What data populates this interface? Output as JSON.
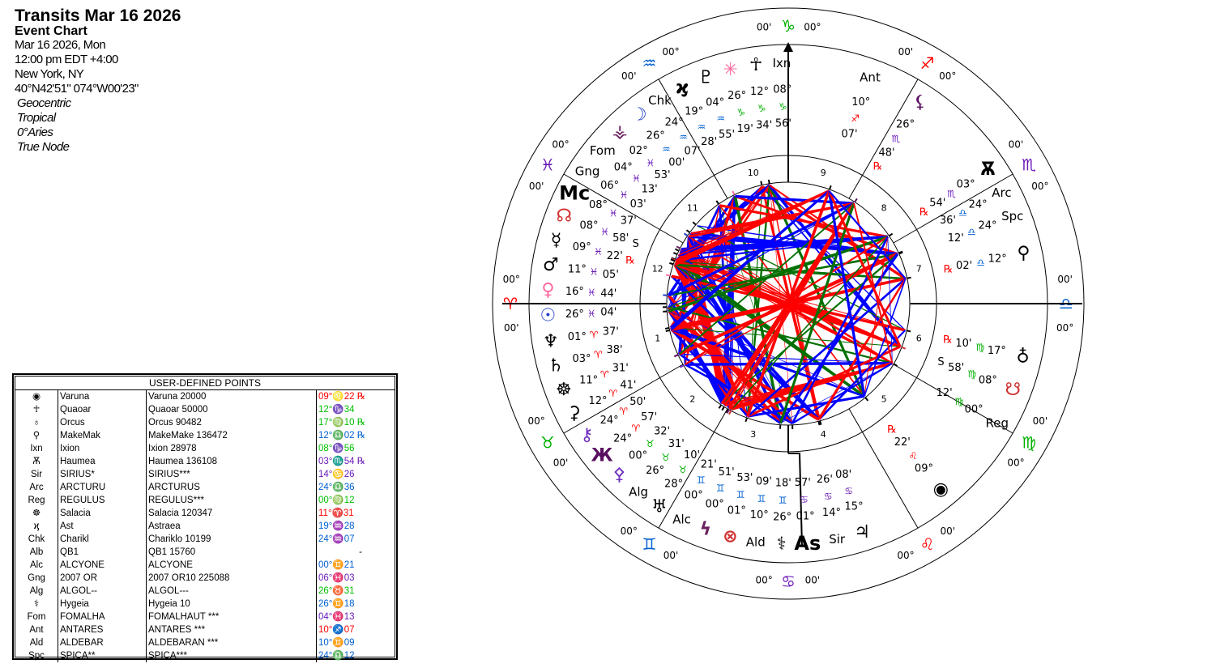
{
  "header": {
    "title": "Transits Mar 16 2026",
    "chart_type": "Event Chart",
    "date": "Mar 16 2026, Mon",
    "time": "12:00 pm  EDT +4:00",
    "place": "New York, NY",
    "coords": "40°N42'51\" 074°W00'23\"",
    "options": [
      "Geocentric",
      "Tropical",
      "0°Aries",
      "True Node"
    ]
  },
  "table": {
    "title": "USER-DEFINED POINTS",
    "rows": [
      {
        "glyph": "◉",
        "short": "Varuna",
        "full": "Varuna 20000",
        "pos": "09°♌22 ℞",
        "color": "#ff0000"
      },
      {
        "glyph": "☥",
        "short": "Quaoar",
        "full": "Quaoar 50000",
        "pos": "12°♑34",
        "color": "#00c000"
      },
      {
        "glyph": "♁",
        "short": "Orcus",
        "full": "Orcus 90482",
        "pos": "17°♍10 ℞",
        "color": "#00c000"
      },
      {
        "glyph": "⚲",
        "short": "MakeMak",
        "full": "MakeMake 136472",
        "pos": "12°♎02 ℞",
        "color": "#0060d0"
      },
      {
        "glyph": "Ixn",
        "short": "Ixion",
        "full": "Ixion 28978",
        "pos": "08°♑56",
        "color": "#00c000"
      },
      {
        "glyph": "Ѫ",
        "short": "Haumea",
        "full": "Haumea 136108",
        "pos": "03°♏54 ℞",
        "color": "#6a1ab8"
      },
      {
        "glyph": "Sir",
        "short": "SIRIUS*",
        "full": "SIRIUS***",
        "pos": "14°♋26",
        "color": "#6a1ab8"
      },
      {
        "glyph": "Arc",
        "short": "ARCTURU",
        "full": "ARCTURUS",
        "pos": "24°♎36",
        "color": "#0060d0"
      },
      {
        "glyph": "Reg",
        "short": "REGULUS",
        "full": "REGULUS***",
        "pos": "00°♍12",
        "color": "#00c000"
      },
      {
        "glyph": "☸",
        "short": "Salacia",
        "full": "Salacia 120347",
        "pos": "11°♈31",
        "color": "#ff0000"
      },
      {
        "glyph": "ϗ",
        "short": "Ast",
        "full": "Astraea",
        "pos": "19°♒28",
        "color": "#0060d0"
      },
      {
        "glyph": "Chk",
        "short": "Charikl",
        "full": "Chariklo 10199",
        "pos": "24°♒07",
        "color": "#0060d0"
      },
      {
        "glyph": "Alb",
        "short": "QB1",
        "full": "QB1 15760",
        "pos": "-",
        "color": "#000000"
      },
      {
        "glyph": "Alc",
        "short": "ALCYONE",
        "full": "ALCYONE",
        "pos": "00°♊21",
        "color": "#0060d0"
      },
      {
        "glyph": "Gng",
        "short": "2007 OR",
        "full": "2007 OR10 225088",
        "pos": "06°♓03",
        "color": "#6a1ab8"
      },
      {
        "glyph": "Alg",
        "short": "ALGOL--",
        "full": "ALGOL---",
        "pos": "26°♉31",
        "color": "#00c000"
      },
      {
        "glyph": "⚕",
        "short": "Hygeia",
        "full": "Hygeia 10",
        "pos": "26°♊18",
        "color": "#0060d0"
      },
      {
        "glyph": "Fom",
        "short": "FOMALHA",
        "full": "FOMALHAUT ***",
        "pos": "04°♓13",
        "color": "#6a1ab8"
      },
      {
        "glyph": "Ant",
        "short": "ANTARES",
        "full": "ANTARES ***",
        "pos": "10°♐07",
        "color": "#ff0000"
      },
      {
        "glyph": "Ald",
        "short": "ALDEBAR",
        "full": "ALDEBARAN ***",
        "pos": "10°♊09",
        "color": "#0060d0"
      },
      {
        "glyph": "Spc",
        "short": "SPICA**",
        "full": "SPICA***",
        "pos": "24°♎12",
        "color": "#0060d0"
      }
    ]
  },
  "wheel": {
    "element_colors": {
      "fire": "#ff0000",
      "earth": "#00b000",
      "air": "#0060d0",
      "water": "#6a1ab8"
    },
    "aspect_colors": {
      "hard": "#ff0000",
      "soft": "#0000ff",
      "minor": "#007000"
    },
    "signs": [
      {
        "glyph": "♈",
        "name": "aries",
        "element": "fire"
      },
      {
        "glyph": "♉",
        "name": "taurus",
        "element": "earth"
      },
      {
        "glyph": "♊",
        "name": "gemini",
        "element": "air"
      },
      {
        "glyph": "♋",
        "name": "cancer",
        "element": "water"
      },
      {
        "glyph": "♌",
        "name": "leo",
        "element": "fire"
      },
      {
        "glyph": "♍",
        "name": "virgo",
        "element": "earth"
      },
      {
        "glyph": "♎",
        "name": "libra",
        "element": "air"
      },
      {
        "glyph": "♏",
        "name": "scorpio",
        "element": "water"
      },
      {
        "glyph": "♐",
        "name": "sagittarius",
        "element": "fire"
      },
      {
        "glyph": "♑",
        "name": "capricorn",
        "element": "earth"
      },
      {
        "glyph": "♒",
        "name": "aquarius",
        "element": "air"
      },
      {
        "glyph": "♓",
        "name": "pisces",
        "element": "water"
      }
    ],
    "cusp_deg": "00°",
    "cusp_min": "00'",
    "houses": [
      "1",
      "2",
      "3",
      "4",
      "5",
      "6",
      "7",
      "8",
      "9",
      "10",
      "11",
      "12"
    ],
    "points": [
      {
        "name": "quaoar",
        "glyph": "☥",
        "color": "#000000",
        "deg": "12°",
        "sign": "♑",
        "min": "34'"
      },
      {
        "name": "ixion",
        "glyph": "Ixn",
        "color": "#000000",
        "deg": "08°",
        "sign": "♑",
        "min": "56'"
      },
      {
        "name": "juno",
        "glyph": "✳",
        "color": "#ff6aa0",
        "deg": "26°",
        "sign": "♑",
        "min": "19'"
      },
      {
        "name": "pluto",
        "glyph": "♇",
        "color": "#000000",
        "deg": "04°",
        "sign": "♒",
        "min": "55'"
      },
      {
        "name": "astraea",
        "glyph": "ϗ",
        "color": "#000000",
        "deg": "19°",
        "sign": "♒",
        "min": "28'"
      },
      {
        "name": "chariklo",
        "glyph": "Chk",
        "color": "#000000",
        "deg": "24°",
        "sign": "♒",
        "min": "07'"
      },
      {
        "name": "moon",
        "glyph": "☽",
        "color": "#1e3cc8",
        "deg": "26°",
        "sign": "♒",
        "min": "00'"
      },
      {
        "name": "vesta",
        "glyph": "⚶",
        "color": "#6a2060",
        "deg": "02°",
        "sign": "♓",
        "min": "53'"
      },
      {
        "name": "fomalhaut",
        "glyph": "Fom",
        "color": "#000000",
        "deg": "04°",
        "sign": "♓",
        "min": "13'"
      },
      {
        "name": "2007-or10",
        "glyph": "Gng",
        "color": "#000000",
        "deg": "06°",
        "sign": "♓",
        "min": "03'"
      },
      {
        "name": "midheaven",
        "glyph": "Mc",
        "color": "#000000",
        "deg": "08°",
        "sign": "♓",
        "min": "37'",
        "big": true
      },
      {
        "name": "north-node",
        "glyph": "☊",
        "color": "#d03030",
        "deg": "08°",
        "sign": "♓",
        "min": "58'",
        "flag": "S"
      },
      {
        "name": "mercury",
        "glyph": "☿",
        "color": "#000000",
        "deg": "09°",
        "sign": "♓",
        "min": "22'",
        "flag": "℞"
      },
      {
        "name": "mars",
        "glyph": "♂",
        "color": "#000000",
        "deg": "11°",
        "sign": "♓",
        "min": "05'"
      },
      {
        "name": "venus",
        "glyph": "♀",
        "color": "#ff6aa0",
        "deg": "16°",
        "sign": "♓",
        "min": "44'"
      },
      {
        "name": "sun",
        "glyph": "☉",
        "color": "#1e3cc8",
        "deg": "26°",
        "sign": "♓",
        "min": "04'"
      },
      {
        "name": "neptune",
        "glyph": "♆",
        "color": "#000000",
        "deg": "01°",
        "sign": "♈",
        "min": "37'"
      },
      {
        "name": "saturn",
        "glyph": "♄",
        "color": "#000000",
        "deg": "03°",
        "sign": "♈",
        "min": "38'"
      },
      {
        "name": "salacia",
        "glyph": "☸",
        "color": "#000000",
        "deg": "11°",
        "sign": "♈",
        "min": "31'"
      },
      {
        "name": "ceres",
        "glyph": "⚳",
        "color": "#000000",
        "deg": "12°",
        "sign": "♈",
        "min": "41'"
      },
      {
        "name": "chiron",
        "glyph": "⚷",
        "color": "#7030c0",
        "deg": "24°",
        "sign": "♈",
        "min": "50'"
      },
      {
        "name": "eris",
        "glyph": "Ж",
        "color": "#5a1060",
        "deg": "24°",
        "sign": "♈",
        "min": "57'"
      },
      {
        "name": "pallas",
        "glyph": "⚴",
        "color": "#7030c0",
        "deg": "00°",
        "sign": "♉",
        "min": "32'"
      },
      {
        "name": "algol",
        "glyph": "Alg",
        "color": "#000000",
        "deg": "26°",
        "sign": "♉",
        "min": "31'"
      },
      {
        "name": "uranus",
        "glyph": "♅",
        "color": "#000000",
        "deg": "28°",
        "sign": "♉",
        "min": "10'"
      },
      {
        "name": "alcyone",
        "glyph": "Alc",
        "color": "#000000",
        "deg": "00°",
        "sign": "♊",
        "min": "21'"
      },
      {
        "name": "hook-point",
        "glyph": "ϟ",
        "color": "#6a2060",
        "deg": "00°",
        "sign": "♊",
        "min": "51'"
      },
      {
        "name": "part-of-fortune",
        "glyph": "⊗",
        "color": "#d03030",
        "deg": "01°",
        "sign": "♊",
        "min": "53'"
      },
      {
        "name": "aldebaran",
        "glyph": "Ald",
        "color": "#000000",
        "deg": "10°",
        "sign": "♊",
        "min": "09'"
      },
      {
        "name": "hygeia",
        "glyph": "⚕",
        "color": "#000000",
        "deg": "26°",
        "sign": "♊",
        "min": "18'"
      },
      {
        "name": "ascendant",
        "glyph": "As",
        "color": "#000000",
        "deg": "01°",
        "sign": "♋",
        "min": "57'",
        "big": true
      },
      {
        "name": "sirius",
        "glyph": "Sir",
        "color": "#000000",
        "deg": "14°",
        "sign": "♋",
        "min": "26'"
      },
      {
        "name": "jupiter",
        "glyph": "♃",
        "color": "#000000",
        "deg": "15°",
        "sign": "♋",
        "min": "08'"
      },
      {
        "name": "varuna",
        "glyph": "◉",
        "color": "#000000",
        "deg": "09°",
        "sign": "♌",
        "min": "22'",
        "flag": "℞"
      },
      {
        "name": "regulus",
        "glyph": "Reg",
        "color": "#000000",
        "deg": "00°",
        "sign": "♍",
        "min": "12'"
      },
      {
        "name": "south-node",
        "glyph": "☋",
        "color": "#d03030",
        "deg": "08°",
        "sign": "♍",
        "min": "58'",
        "flag": "S"
      },
      {
        "name": "orcus",
        "glyph": "♁",
        "color": "#000000",
        "deg": "17°",
        "sign": "♍",
        "min": "10'",
        "flag": "℞"
      },
      {
        "name": "makemake",
        "glyph": "⚲",
        "color": "#000000",
        "deg": "12°",
        "sign": "♎",
        "min": "02'",
        "flag": "℞"
      },
      {
        "name": "spica",
        "glyph": "Spc",
        "color": "#000000",
        "deg": "24°",
        "sign": "♎",
        "min": "12'"
      },
      {
        "name": "arcturus",
        "glyph": "Arc",
        "color": "#000000",
        "deg": "24°",
        "sign": "♎",
        "min": "36'"
      },
      {
        "name": "haumea",
        "glyph": "Ѫ",
        "color": "#000000",
        "deg": "03°",
        "sign": "♏",
        "min": "54'",
        "flag": "℞"
      },
      {
        "name": "lilith",
        "glyph": "⚸",
        "color": "#5a1060",
        "deg": "26°",
        "sign": "♏",
        "min": "48'",
        "flag": "℞"
      },
      {
        "name": "antares",
        "glyph": "Ant",
        "color": "#000000",
        "deg": "10°",
        "sign": "♐",
        "min": "07'"
      }
    ]
  }
}
